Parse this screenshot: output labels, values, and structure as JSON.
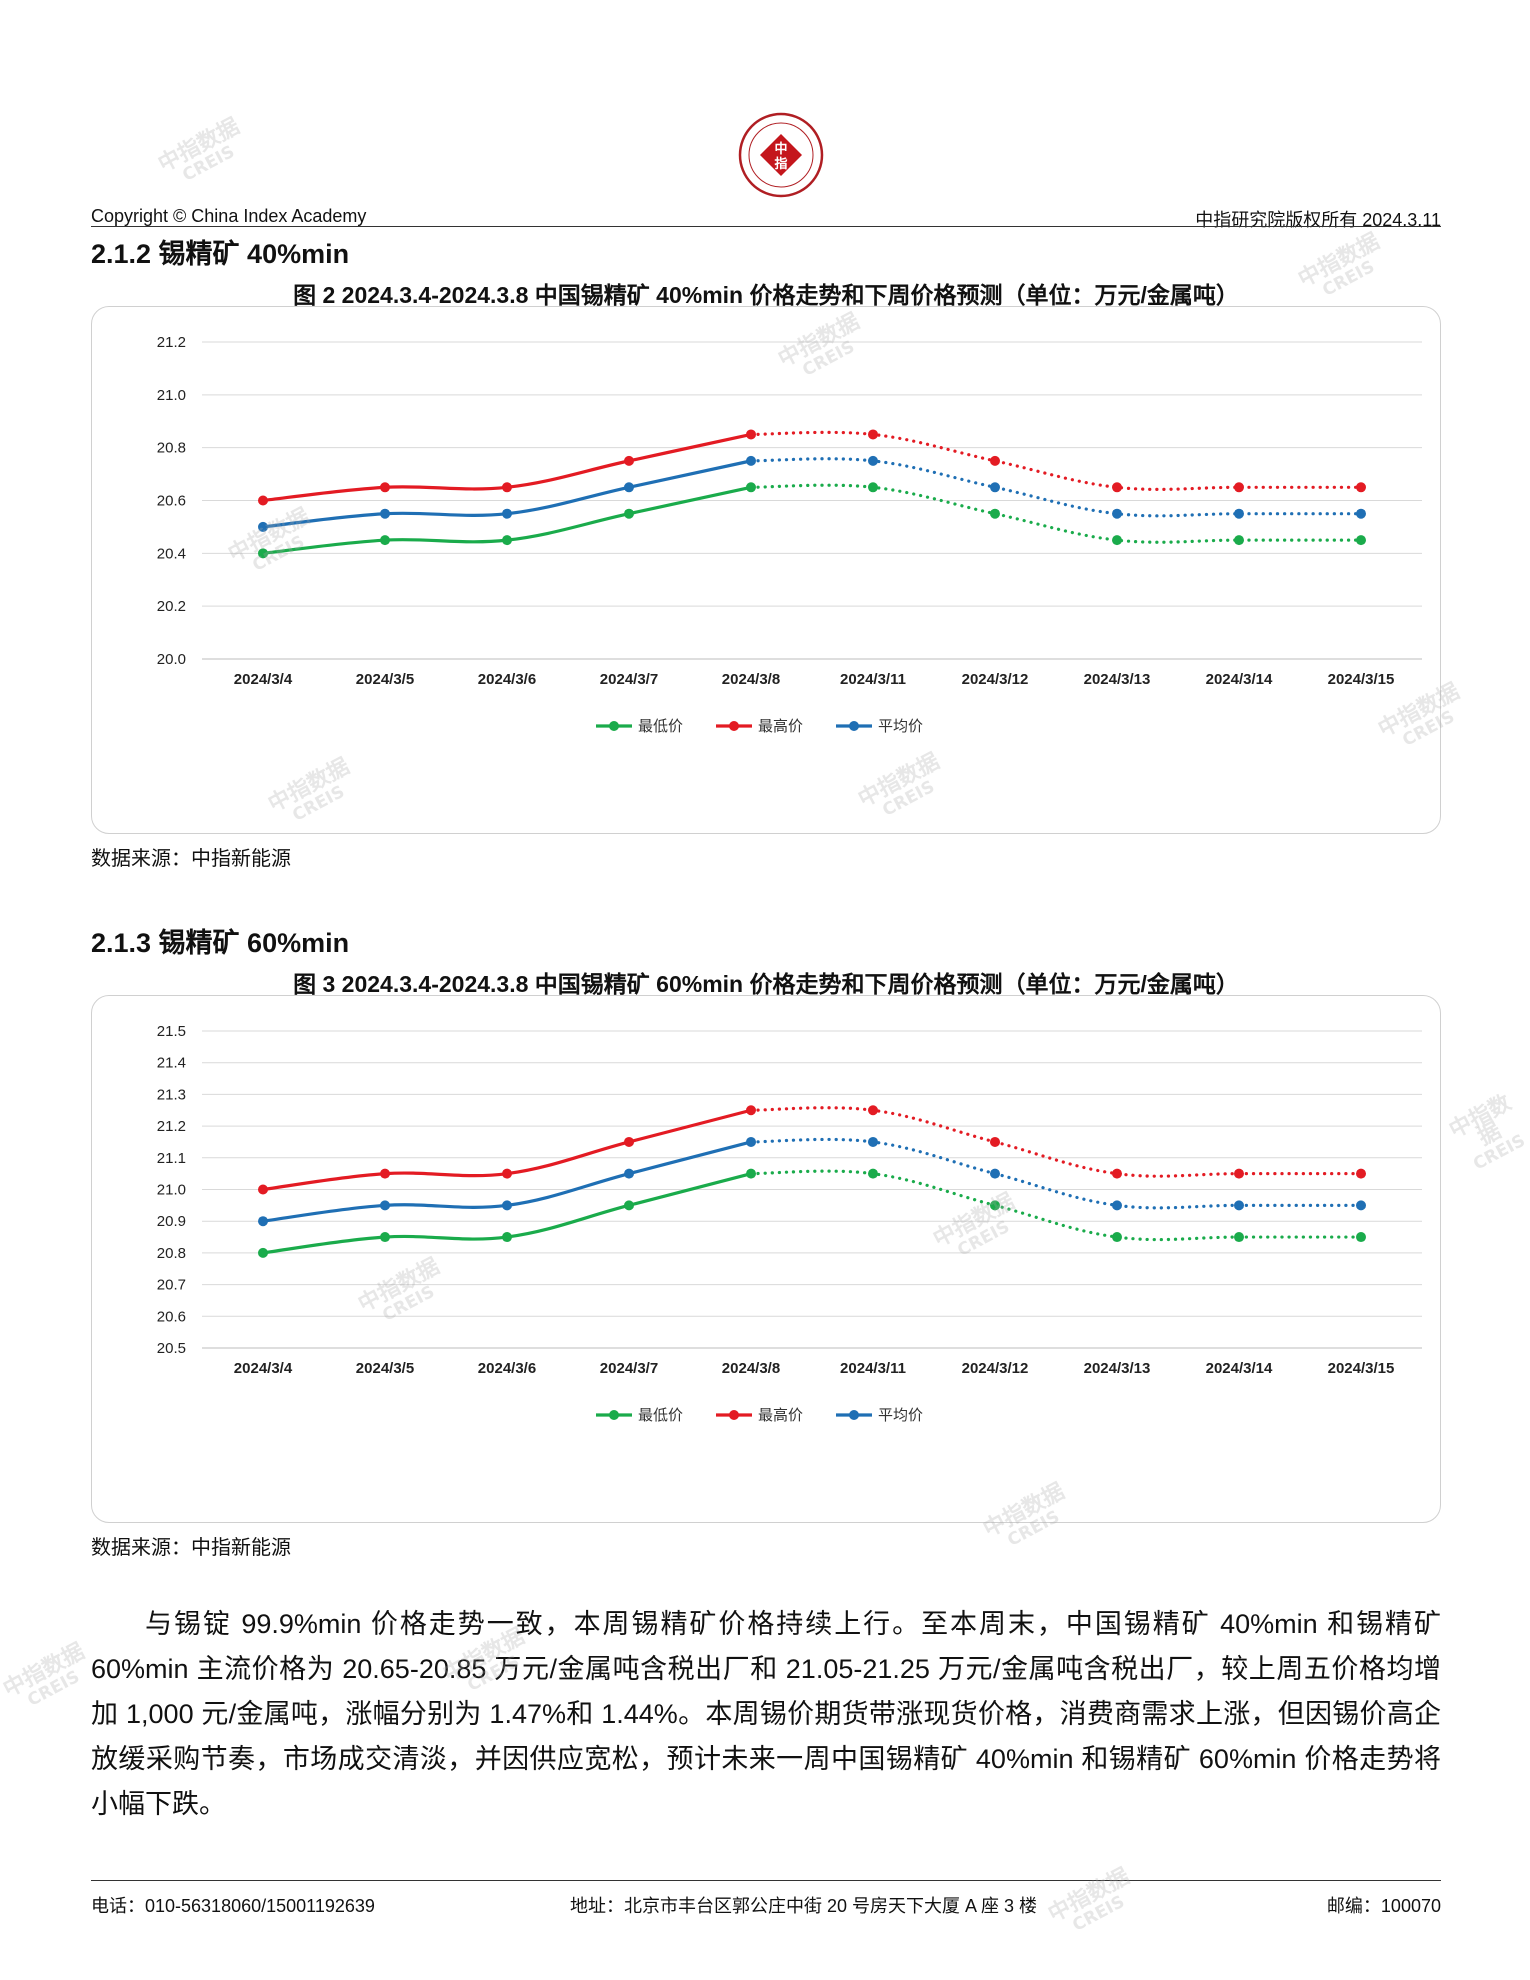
{
  "header": {
    "copyright": "Copyright © China Index Academy",
    "rights": "中指研究院版权所有 2024.3.11",
    "logo_char_1": "中",
    "logo_char_2": "指"
  },
  "sections": [
    {
      "heading": "2.1.2 锡精矿 40%min",
      "figure_title": "图 2 2024.3.4-2024.3.8 中国锡精矿 40%min 价格走势和下周价格预测（单位：万元/金属吨）",
      "source": "数据来源：中指新能源"
    },
    {
      "heading": "2.1.3 锡精矿 60%min",
      "figure_title": "图 3 2024.3.4-2024.3.8 中国锡精矿 60%min 价格走势和下周价格预测（单位：万元/金属吨）",
      "source": "数据来源：中指新能源"
    }
  ],
  "chart_data": [
    {
      "type": "line",
      "categories": [
        "2024/3/4",
        "2024/3/5",
        "2024/3/6",
        "2024/3/7",
        "2024/3/8",
        "2024/3/11",
        "2024/3/12",
        "2024/3/13",
        "2024/3/14",
        "2024/3/15"
      ],
      "forecast_from_index": 4,
      "ylim": [
        20.0,
        21.2
      ],
      "yticks": [
        "20.0",
        "20.2",
        "20.4",
        "20.6",
        "20.8",
        "21.0",
        "21.2"
      ],
      "ystep": 0.2,
      "grid": true,
      "legend_position": "bottom",
      "series": [
        {
          "name": "最低价",
          "color": "#1aab4b",
          "values": [
            20.4,
            20.45,
            20.45,
            20.55,
            20.65,
            20.65,
            20.55,
            20.45,
            20.45,
            20.45
          ]
        },
        {
          "name": "最高价",
          "color": "#e31b23",
          "values": [
            20.6,
            20.65,
            20.65,
            20.75,
            20.85,
            20.85,
            20.75,
            20.65,
            20.65,
            20.65
          ]
        },
        {
          "name": "平均价",
          "color": "#1f6fb4",
          "values": [
            20.5,
            20.55,
            20.55,
            20.65,
            20.75,
            20.75,
            20.65,
            20.55,
            20.55,
            20.55
          ]
        }
      ]
    },
    {
      "type": "line",
      "categories": [
        "2024/3/4",
        "2024/3/5",
        "2024/3/6",
        "2024/3/7",
        "2024/3/8",
        "2024/3/11",
        "2024/3/12",
        "2024/3/13",
        "2024/3/14",
        "2024/3/15"
      ],
      "forecast_from_index": 4,
      "ylim": [
        20.5,
        21.5
      ],
      "yticks": [
        "20.5",
        "20.6",
        "20.7",
        "20.8",
        "20.9",
        "21.0",
        "21.1",
        "21.2",
        "21.3",
        "21.4",
        "21.5"
      ],
      "ystep": 0.1,
      "grid": true,
      "legend_position": "bottom",
      "series": [
        {
          "name": "最低价",
          "color": "#1aab4b",
          "values": [
            20.8,
            20.85,
            20.85,
            20.95,
            21.05,
            21.05,
            20.95,
            20.85,
            20.85,
            20.85
          ]
        },
        {
          "name": "最高价",
          "color": "#e31b23",
          "values": [
            21.0,
            21.05,
            21.05,
            21.15,
            21.25,
            21.25,
            21.15,
            21.05,
            21.05,
            21.05
          ]
        },
        {
          "name": "平均价",
          "color": "#1f6fb4",
          "values": [
            20.9,
            20.95,
            20.95,
            21.05,
            21.15,
            21.15,
            21.05,
            20.95,
            20.95,
            20.95
          ]
        }
      ]
    }
  ],
  "paragraph": "与锡锭 99.9%min 价格走势一致，本周锡精矿价格持续上行。至本周末，中国锡精矿 40%min 和锡精矿 60%min 主流价格为 20.65-20.85 万元/金属吨含税出厂和 21.05-21.25 万元/金属吨含税出厂，较上周五价格均增加 1,000 元/金属吨，涨幅分别为 1.47%和 1.44%。本周锡价期货带涨现货价格，消费商需求上涨，但因锡价高企放缓采购节奏，市场成交清淡，并因供应宽松，预计未来一周中国锡精矿 40%min 和锡精矿 60%min 价格走势将小幅下跌。",
  "footer": {
    "phone": "电话：010-56318060/15001192639",
    "address": "地址：北京市丰台区郭公庄中街 20 号房天下大厦 A 座 3 楼",
    "postcode": "邮编：100070"
  },
  "watermark": {
    "line1": "中指数据",
    "line2": "CREIS"
  }
}
